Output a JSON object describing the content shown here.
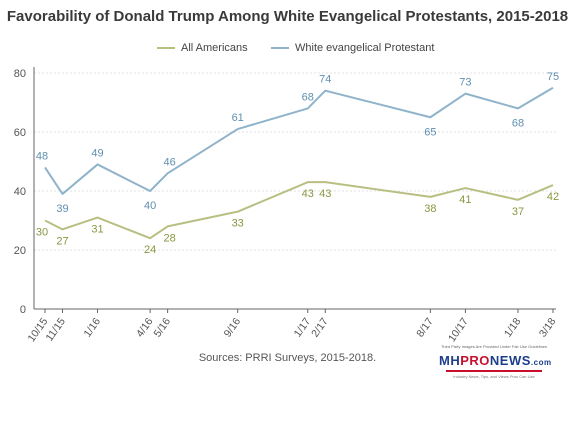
{
  "chart_data": {
    "type": "line",
    "title": "Favorability of Donald Trump Among White Evangelical Protestants, 2015-2018",
    "xlabel": "",
    "ylabel": "",
    "ylim": [
      0,
      80
    ],
    "yticks": [
      0,
      20,
      40,
      60,
      80
    ],
    "grid": true,
    "legend_position": "top",
    "categories": [
      "10/15",
      "11/15",
      "1/16",
      "4/16",
      "5/16",
      "9/16",
      "1/17",
      "2/17",
      "8/17",
      "10/17",
      "1/18",
      "3/18"
    ],
    "series": [
      {
        "name": "All Americans",
        "color": "#b9bf82",
        "label_color": "#8a9640",
        "x": [
          "10/15",
          "11/15",
          "1/16",
          "4/16",
          "5/16",
          "9/16",
          "1/17",
          "2/17",
          "8/17",
          "10/17",
          "1/18",
          "3/18"
        ],
        "values": [
          30,
          27,
          31,
          24,
          28,
          33,
          43,
          43,
          38,
          41,
          37,
          42
        ]
      },
      {
        "name": "White evangelical Protestant",
        "color": "#8fb3cb",
        "label_color": "#5f8fb0",
        "x": [
          "10/15",
          "11/15",
          "1/16",
          "4/16",
          "5/16",
          "9/16",
          "1/17",
          "2/17",
          "8/17",
          "10/17",
          "1/18",
          "3/18"
        ],
        "values": [
          48,
          39,
          49,
          40,
          46,
          61,
          68,
          74,
          65,
          73,
          68,
          75
        ]
      }
    ]
  },
  "source": "Sources: PRRI Surveys, 2015-2018.",
  "watermark": {
    "top_text": "Third Party Images Are Provided Under Fair Use Guidelines",
    "logo_mh": "MH",
    "logo_pro": "PRO",
    "logo_news": "NEWS",
    "logo_suffix": ".com",
    "tagline": "Industry News, Tips, and Views Pros Can Use"
  }
}
